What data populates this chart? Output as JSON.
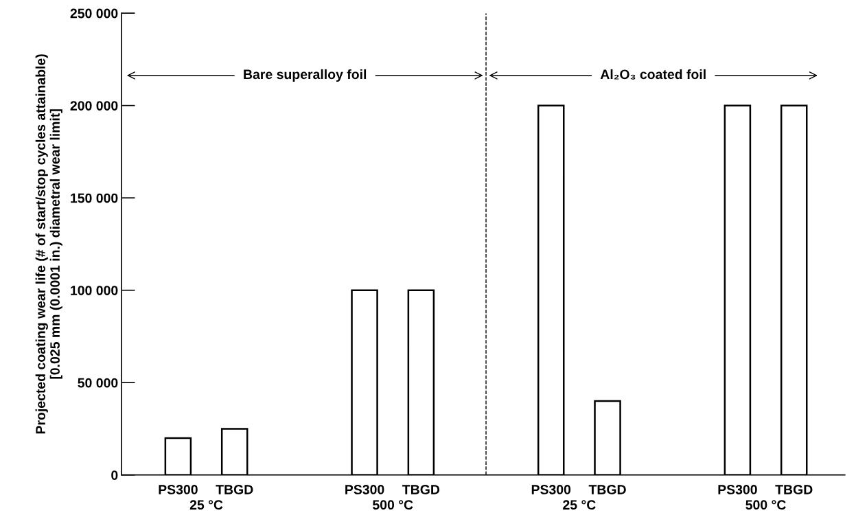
{
  "chart_data": {
    "type": "bar",
    "ylabel": "Projected coating wear life (# of start/stop cycles attainable)\n[0.025 mm (0.0001 in.) diametral wear limit]",
    "categories": [
      "PS300",
      "TBGD",
      "PS300",
      "TBGD",
      "PS300",
      "TBGD",
      "PS300",
      "TBGD"
    ],
    "values": [
      20000,
      25000,
      100000,
      100000,
      200000,
      40000,
      200000,
      200000
    ],
    "color": "#ffffff",
    "ylim": [
      0,
      250000
    ],
    "yticks": [
      0,
      {
        "value": 50000,
        "label": "50 000"
      },
      {
        "value": 100000,
        "label": "100 000"
      },
      {
        "value": 150000,
        "label": "150 000"
      },
      {
        "value": 200000,
        "label": "200 000"
      },
      {
        "value": 250000,
        "label": "250 000"
      }
    ],
    "grid": false,
    "annotations": [
      "25 °C",
      "500 °C",
      "25 °C",
      "500 °C",
      "Bare superalloy foil",
      "Al₂O₃ coated foil"
    ]
  }
}
